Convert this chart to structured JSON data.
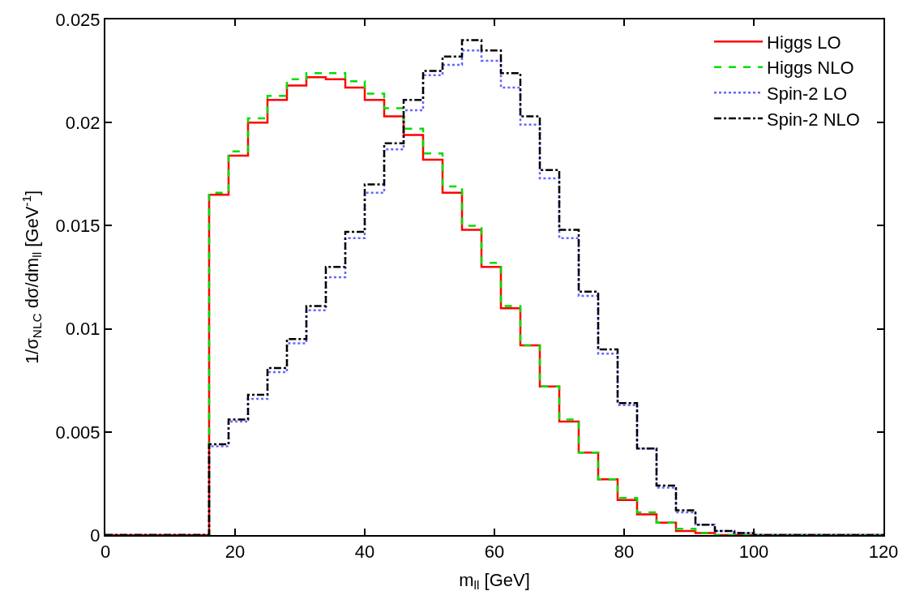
{
  "chart_data": {
    "type": "histogram",
    "xlabel": "m$_{ll}$ [GeV]",
    "ylabel": "1/σ$_{NLC}$ dσ/dm$_{ll}$ [GeV$^{-1}$]",
    "bins": [
      0,
      16,
      19,
      22,
      25,
      28,
      31,
      34,
      37,
      40,
      43,
      46,
      49,
      52,
      55,
      58,
      61,
      64,
      67,
      70,
      73,
      76,
      79,
      82,
      85,
      88,
      91,
      94,
      97,
      100,
      120
    ],
    "series": [
      {
        "name": "Higgs LO",
        "color": "#ff0000",
        "line_style": "solid",
        "values": [
          0,
          0.0165,
          0.0184,
          0.02,
          0.0211,
          0.0218,
          0.0222,
          0.0221,
          0.0217,
          0.0211,
          0.0203,
          0.0194,
          0.0182,
          0.0166,
          0.0148,
          0.013,
          0.011,
          0.0092,
          0.0072,
          0.0055,
          0.004,
          0.0027,
          0.0017,
          0.001,
          0.0006,
          0.0002,
          0.0001,
          0,
          0,
          0
        ]
      },
      {
        "name": "Higgs NLO",
        "color": "#00dd00",
        "line_style": "dashed",
        "values": [
          0,
          0.0166,
          0.0186,
          0.0202,
          0.0213,
          0.0221,
          0.0224,
          0.0224,
          0.022,
          0.0214,
          0.0207,
          0.0197,
          0.0185,
          0.0169,
          0.015,
          0.0132,
          0.0111,
          0.0092,
          0.0072,
          0.0056,
          0.004,
          0.0027,
          0.0018,
          0.0011,
          0.0006,
          0.0003,
          0.0001,
          0,
          0,
          0
        ]
      },
      {
        "name": "Spin-2 LO",
        "color": "#6666ff",
        "line_style": "dotted",
        "values": [
          0,
          0.0043,
          0.0055,
          0.0066,
          0.0079,
          0.0093,
          0.0109,
          0.0125,
          0.0144,
          0.0166,
          0.0187,
          0.0206,
          0.0223,
          0.0228,
          0.0235,
          0.023,
          0.0217,
          0.0199,
          0.0173,
          0.0144,
          0.0116,
          0.0088,
          0.0063,
          0.0042,
          0.0023,
          0.0011,
          0.0005,
          0.0002,
          0.0001,
          0
        ]
      },
      {
        "name": "Spin-2 NLO",
        "color": "#000000",
        "line_style": "dashdot",
        "values": [
          0,
          0.0044,
          0.0056,
          0.0068,
          0.0081,
          0.0095,
          0.0111,
          0.013,
          0.0147,
          0.017,
          0.019,
          0.0211,
          0.0225,
          0.0232,
          0.024,
          0.0235,
          0.0224,
          0.0203,
          0.0177,
          0.0148,
          0.0118,
          0.009,
          0.0064,
          0.0042,
          0.0024,
          0.0012,
          0.0005,
          0.0002,
          0.0001,
          0
        ]
      }
    ],
    "xlim": [
      0,
      120
    ],
    "xticks": [
      0,
      20,
      40,
      60,
      80,
      100,
      120
    ],
    "ylim": [
      0,
      0.025
    ],
    "yticks": [
      0,
      0.005,
      0.01,
      0.015,
      0.02,
      0.025
    ],
    "legend": "top right"
  }
}
